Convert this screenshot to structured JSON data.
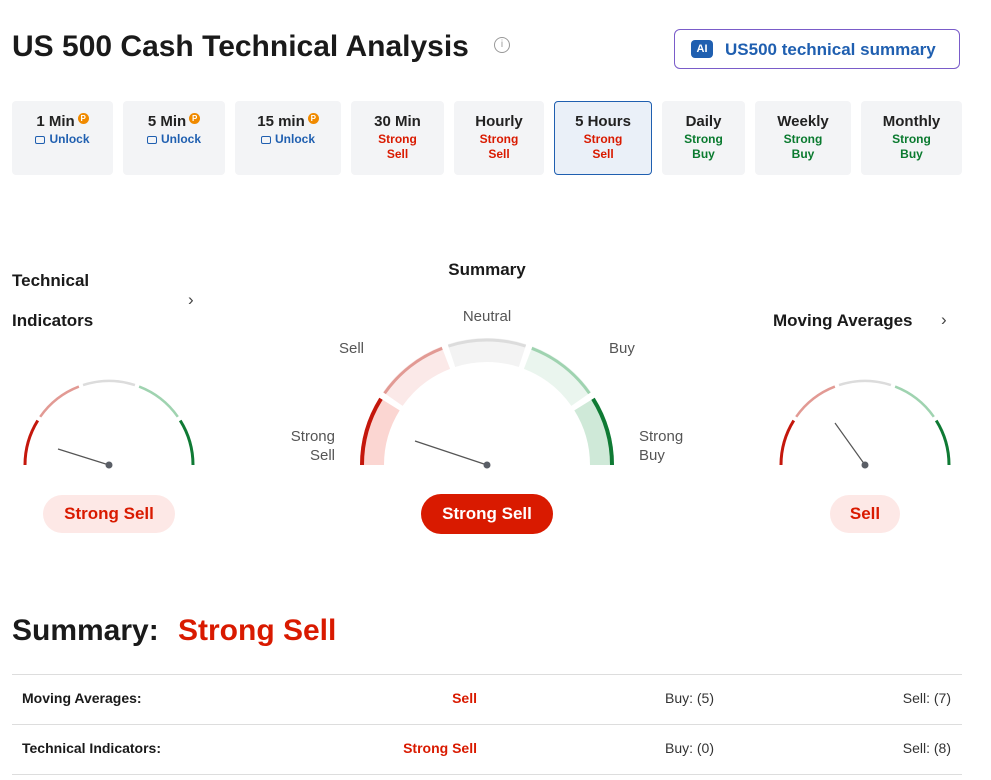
{
  "header": {
    "title": "US 500 Cash Technical Analysis",
    "ai_badge": "AI",
    "ai_button": "US500 technical summary"
  },
  "timeframes": [
    {
      "label": "1 Min",
      "status": "Unlock"
    },
    {
      "label": "5 Min",
      "status": "Unlock"
    },
    {
      "label": "15 min",
      "status": "Unlock"
    },
    {
      "label": "30 Min",
      "status": "Strong Sell"
    },
    {
      "label": "Hourly",
      "status": "Strong Sell"
    },
    {
      "label": "5 Hours",
      "status": "Strong Sell"
    },
    {
      "label": "Daily",
      "status": "Strong Buy"
    },
    {
      "label": "Weekly",
      "status": "Strong Buy"
    },
    {
      "label": "Monthly",
      "status": "Strong Buy"
    }
  ],
  "gauges": {
    "technical": {
      "title_line1": "Technical",
      "title_line2": "Indicators",
      "result": "Strong Sell"
    },
    "summary": {
      "title": "Summary",
      "labels": {
        "neutral": "Neutral",
        "sell": "Sell",
        "buy": "Buy",
        "strong_sell": "Strong Sell",
        "strong_buy": "Strong Buy"
      },
      "result": "Strong Sell"
    },
    "moving": {
      "title": "Moving Averages",
      "result": "Sell"
    }
  },
  "summary": {
    "label": "Summary:",
    "value": "Strong Sell"
  },
  "table": {
    "rows": [
      [
        "Moving Averages:",
        "Sell",
        "Buy: (5)",
        "Sell: (7)"
      ],
      [
        "Technical Indicators:",
        "Strong Sell",
        "Buy: (0)",
        "Sell: (8)"
      ]
    ]
  }
}
